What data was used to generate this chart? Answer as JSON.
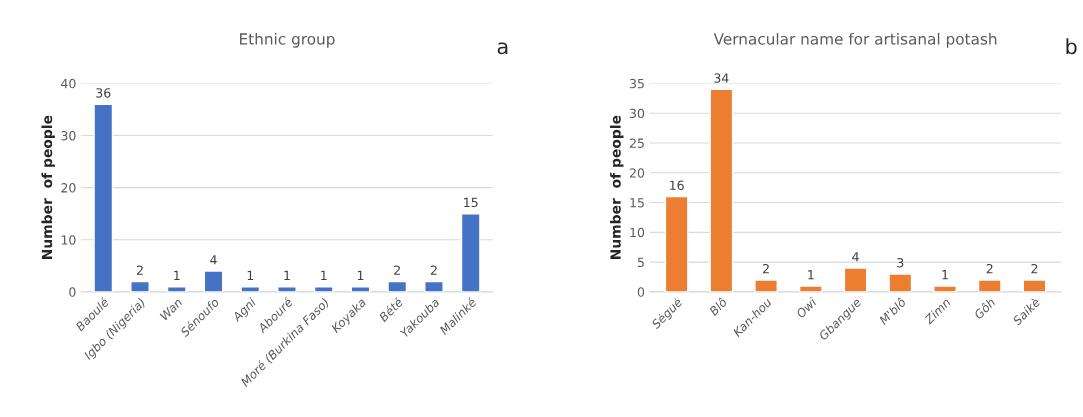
{
  "chart_data": [
    {
      "type": "bar",
      "title": "Ethnic group",
      "ylabel": "Number  of people",
      "annotations": [
        "a"
      ],
      "categories": [
        "Baoulé",
        "Igbo (Nigeria)",
        "Wan",
        "Sénoufo",
        "Agni",
        "Abouré",
        "Moré (Burkina Faso)",
        "Koyaka",
        "Bété",
        "Yakouba",
        "Malinké"
      ],
      "values": [
        36,
        2,
        1,
        4,
        1,
        1,
        1,
        1,
        2,
        2,
        15
      ],
      "color": "#4472c4",
      "ylim": [
        0,
        40
      ],
      "yticks": [
        0,
        10,
        20,
        30,
        40
      ],
      "grid": "y",
      "data_labels": true
    },
    {
      "type": "bar",
      "title": "Vernacular name for artisanal potash",
      "ylabel": "Number  of people",
      "annotations": [
        "b"
      ],
      "categories": [
        "Sėguė",
        "Blô",
        "Kan-hou",
        "Owi",
        "Gbangue",
        "M'blô",
        "Zimn",
        "Gôh",
        "Saikè"
      ],
      "values": [
        16,
        34,
        2,
        1,
        4,
        3,
        1,
        2,
        2
      ],
      "color": "#ed7d31",
      "ylim": [
        0,
        35
      ],
      "yticks": [
        0,
        5,
        10,
        15,
        20,
        25,
        30,
        35
      ],
      "grid": "y",
      "data_labels": true
    }
  ]
}
